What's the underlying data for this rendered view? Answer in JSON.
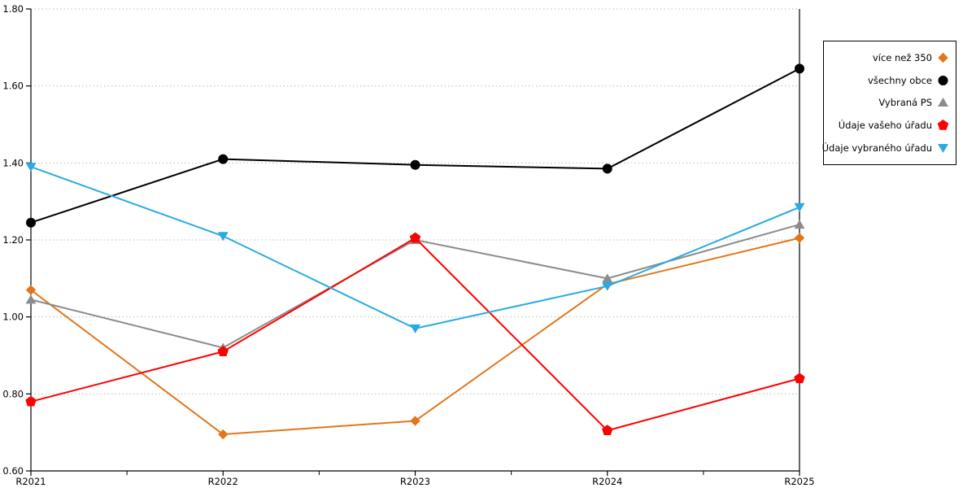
{
  "chart_data": {
    "type": "line",
    "title": "",
    "xlabel": "",
    "ylabel": "",
    "categories": [
      "R2021",
      "R2022",
      "R2023",
      "R2024",
      "R2025"
    ],
    "y_ticks": [
      0.6,
      0.8,
      1.0,
      1.2,
      1.4,
      1.6,
      1.8
    ],
    "y_tick_labels": [
      "0.60",
      "0.80",
      "1.00",
      "1.20",
      "1.40",
      "1.60",
      "1.80"
    ],
    "ylim": [
      0.6,
      1.8
    ],
    "grid": "horizontal-dotted",
    "grid_color": "#bbbbbb",
    "legend_position": "outside-top-right",
    "series": [
      {
        "name": "více než 350",
        "marker": "diamond",
        "color": "#e2761b",
        "values": [
          1.07,
          0.695,
          0.73,
          1.085,
          1.205
        ]
      },
      {
        "name": "všechny obce",
        "marker": "circle",
        "color": "#000000",
        "values": [
          1.245,
          1.41,
          1.395,
          1.385,
          1.645
        ]
      },
      {
        "name": "Vybraná PS",
        "marker": "triangle-up",
        "color": "#8c8c8c",
        "values": [
          1.045,
          0.92,
          1.2,
          1.1,
          1.24
        ]
      },
      {
        "name": "Údaje vašeho úřadu",
        "marker": "pentagon",
        "color": "#ff0000",
        "values": [
          0.78,
          0.91,
          1.205,
          0.705,
          0.84
        ]
      },
      {
        "name": "Údaje vybraného úřadu",
        "marker": "triangle-down",
        "color": "#29abe2",
        "values": [
          1.39,
          1.21,
          0.97,
          1.08,
          1.285
        ]
      }
    ]
  }
}
